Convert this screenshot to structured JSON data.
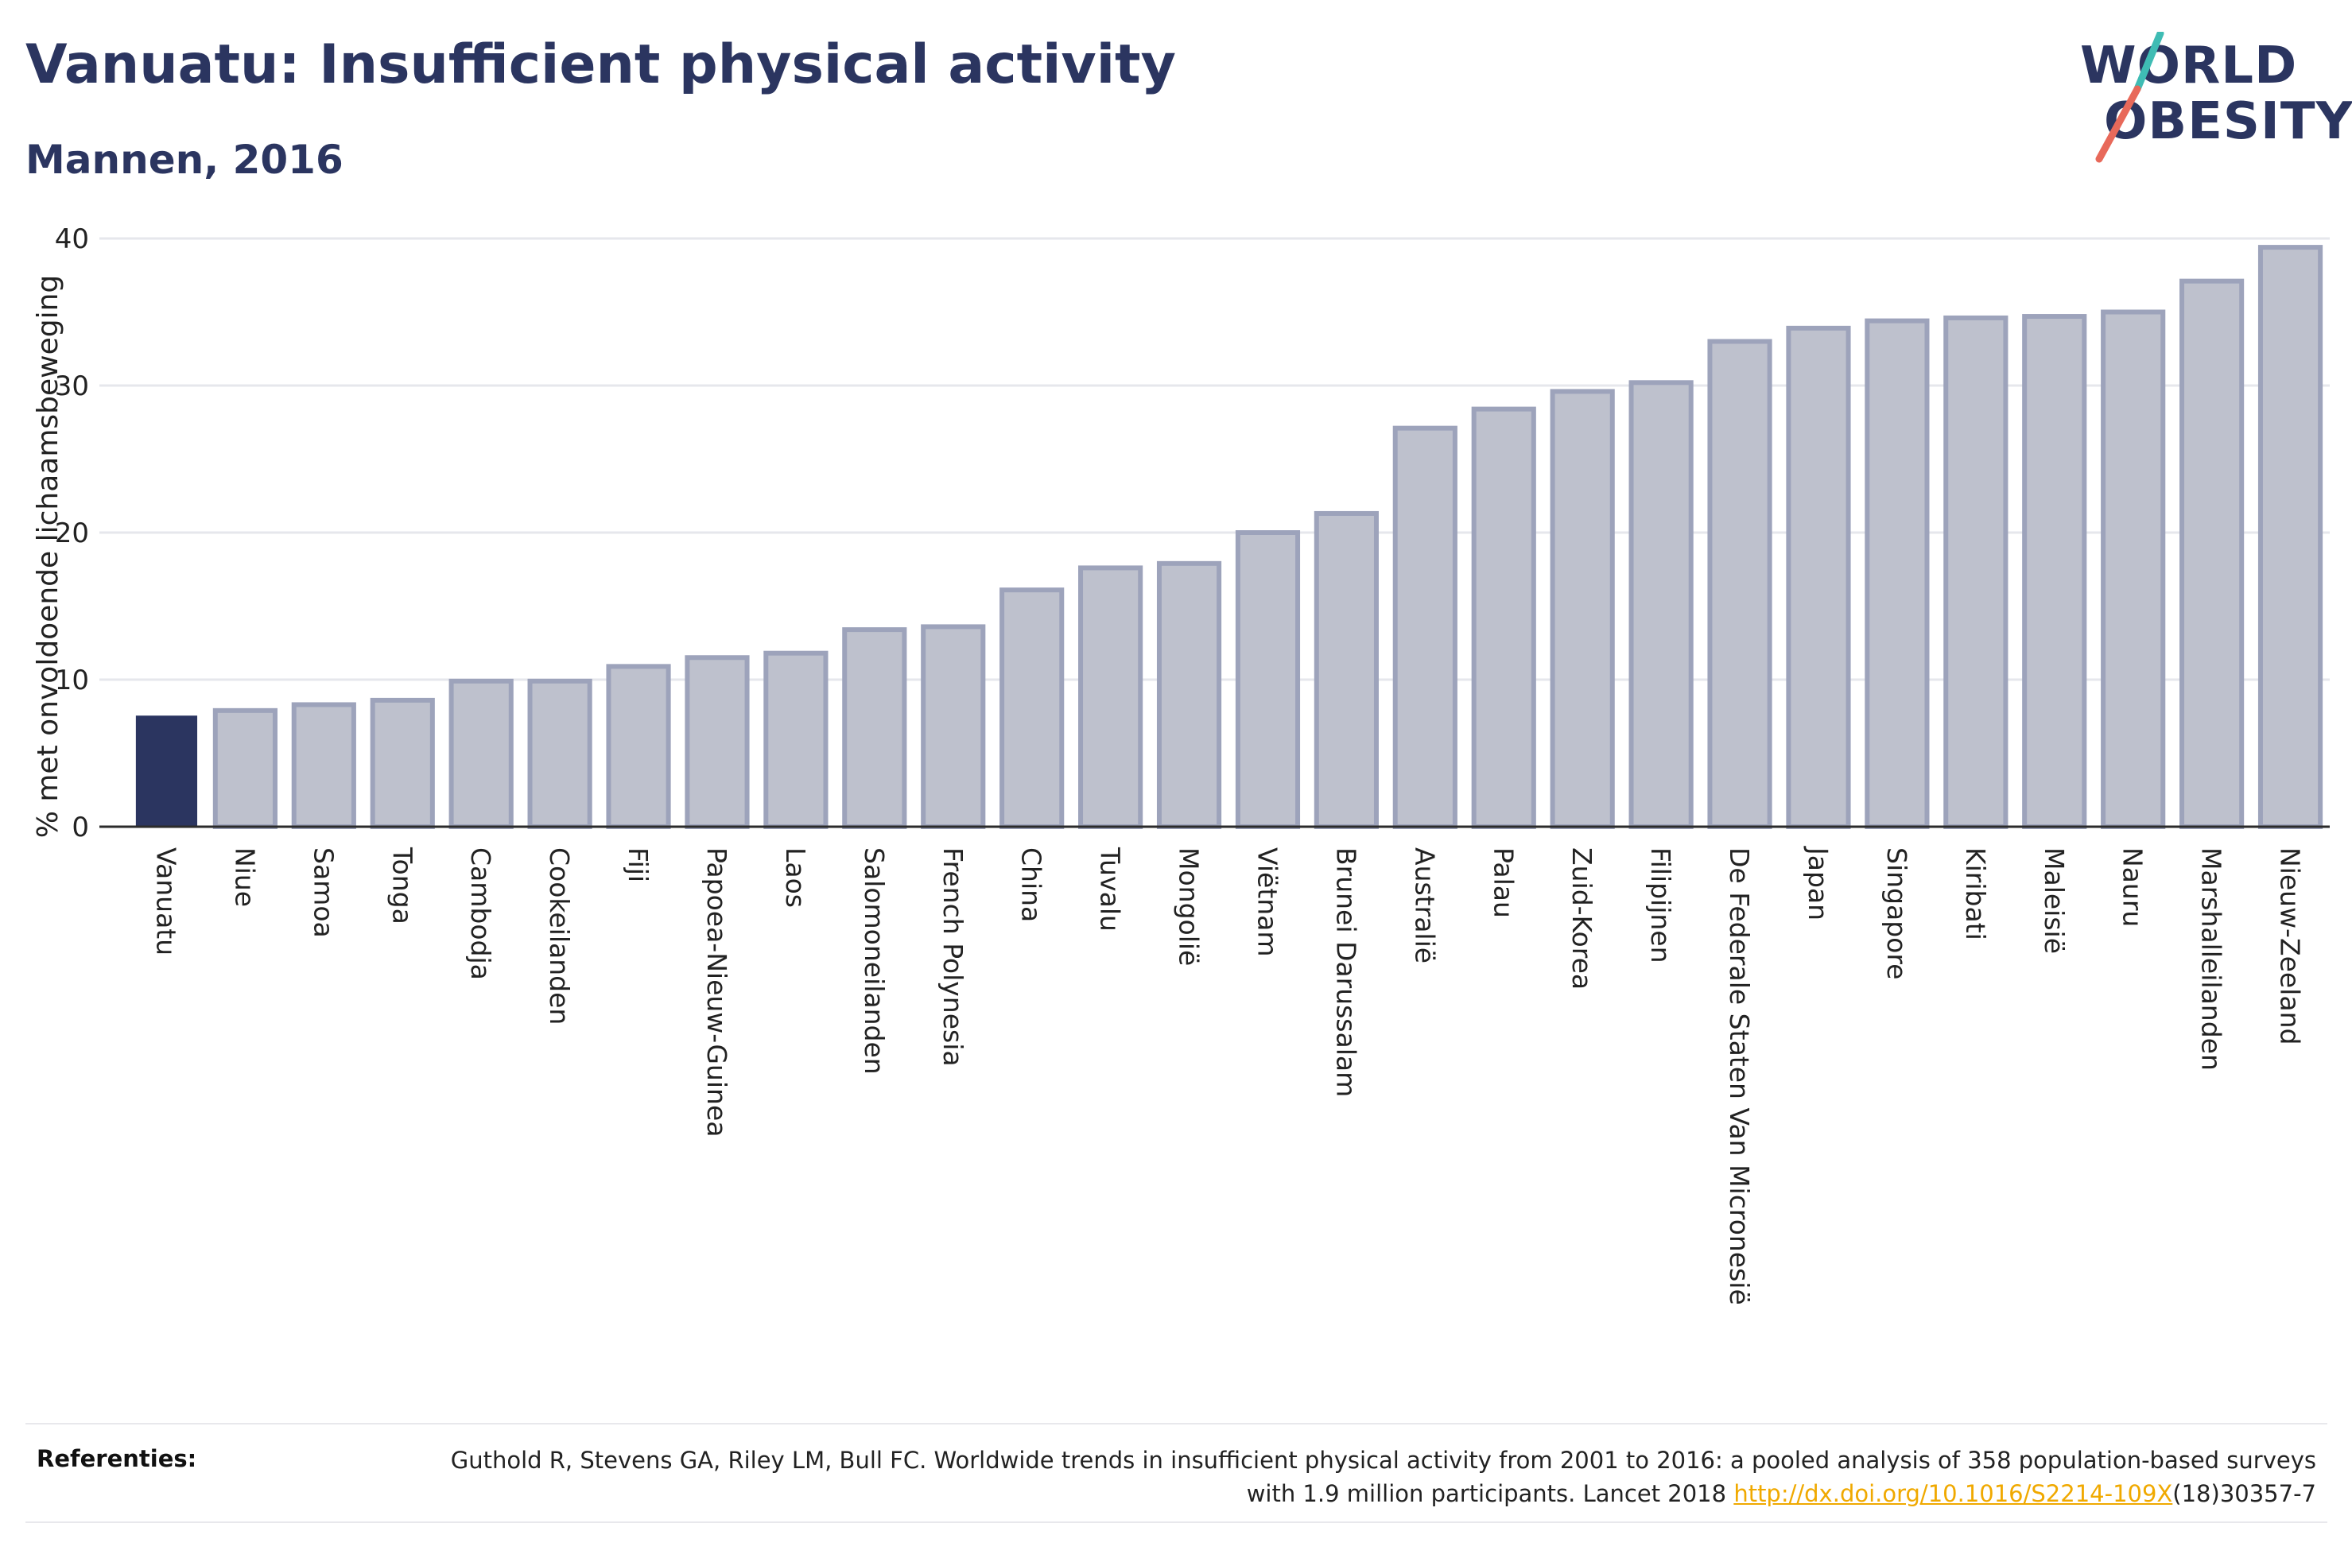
{
  "header": {
    "title": "Vanuatu: Insufficient physical activity",
    "subtitle": "Mannen, 2016"
  },
  "logo": {
    "line1": "WORLD",
    "line2": "OBESITY",
    "accent_teal": "#3fbcb4",
    "accent_coral": "#e8695a"
  },
  "colors": {
    "highlight_bar": "#2b3560",
    "other_bar_fill": "#bec1cd",
    "other_bar_stroke": "#9da3bb",
    "text": "#2b3560",
    "link": "#f0a900"
  },
  "chart_data": {
    "type": "bar",
    "title": "",
    "xlabel": "",
    "ylabel": "% met onvoldoende lichaamsbeweging",
    "ylim": [
      0,
      40
    ],
    "yticks": [
      0,
      10,
      20,
      30,
      40
    ],
    "grid": true,
    "highlight": "Vanuatu",
    "categories": [
      "Vanuatu",
      "Niue",
      "Samoa",
      "Tonga",
      "Cambodja",
      "Cookeilanden",
      "Fiji",
      "Papoea-Nieuw-Guinea",
      "Laos",
      "Salomoneilanden",
      "French Polynesia",
      "China",
      "Tuvalu",
      "Mongolië",
      "Viëtnam",
      "Brunei Darussalam",
      "Australië",
      "Palau",
      "Zuid-Korea",
      "Filipijnen",
      "De Federale Staten Van Micronesië",
      "Japan",
      "Singapore",
      "Kiribati",
      "Maleisië",
      "Nauru",
      "Marshalleilanden",
      "Nieuw-Zeeland"
    ],
    "values": [
      7.5,
      7.9,
      8.3,
      8.6,
      9.9,
      9.9,
      10.9,
      11.5,
      11.8,
      13.4,
      13.6,
      16.1,
      17.6,
      17.9,
      20.0,
      21.3,
      27.1,
      28.4,
      29.6,
      30.2,
      33.0,
      33.9,
      34.4,
      34.6,
      34.7,
      35.0,
      37.1,
      39.4
    ]
  },
  "references": {
    "label": "Referenties:",
    "text_before_link": "Guthold R, Stevens GA, Riley LM, Bull FC. Worldwide trends in insufficient physical activity from 2001 to 2016: a pooled analysis of 358 population-based surveys with 1.9 million participants. Lancet 2018 ",
    "link": "http://dx.doi.org/10.1016/S2214-109X",
    "text_after_link": "(18)30357-7"
  }
}
